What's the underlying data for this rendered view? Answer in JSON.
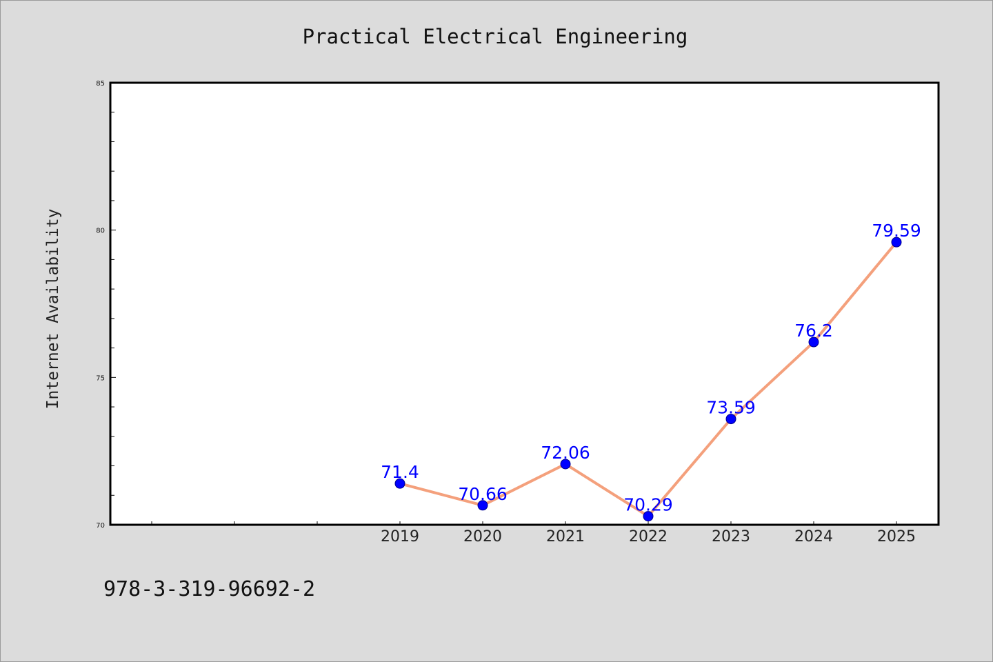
{
  "chart_data": {
    "type": "line",
    "title": "Practical Electrical Engineering",
    "xlabel": "",
    "ylabel": "Internet Availability",
    "categories": [
      "2019",
      "2020",
      "2021",
      "2022",
      "2023",
      "2024",
      "2025"
    ],
    "series": [
      {
        "values": [
          71.4,
          70.66,
          72.06,
          70.29,
          73.59,
          76.2,
          79.59
        ],
        "labels": [
          "71.4",
          "70.66",
          "72.06",
          "70.29",
          "73.59",
          "76.2",
          "79.59"
        ]
      }
    ],
    "ylim": [
      70,
      85
    ],
    "yticks": [
      "70",
      "75",
      "80",
      "85"
    ],
    "grid": false,
    "legend": "none",
    "colors": {
      "line": "#f4a07c",
      "marker": "#0000ff",
      "data_label": "#0000ff",
      "background": "#dcdcdc",
      "plot_background": "#ffffff"
    }
  },
  "footnote": "978-3-319-96692-2"
}
